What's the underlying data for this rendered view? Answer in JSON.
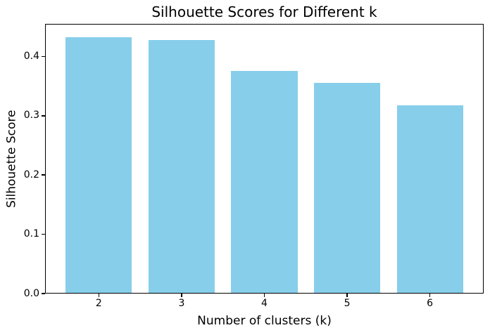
{
  "figure": {
    "background": "#ffffff",
    "text_color": "#000000"
  },
  "chart_data": {
    "type": "bar",
    "title": "Silhouette Scores for Different k",
    "xlabel": "Number of clusters (k)",
    "ylabel": "Silhouette Score",
    "categories": [
      2,
      3,
      4,
      5,
      6
    ],
    "values": [
      0.433,
      0.428,
      0.376,
      0.355,
      0.318
    ],
    "xtick_labels": [
      "2",
      "3",
      "4",
      "5",
      "6"
    ],
    "yticks": [
      0.0,
      0.1,
      0.2,
      0.3,
      0.4
    ],
    "ytick_labels": [
      "0.0",
      "0.1",
      "0.2",
      "0.3",
      "0.4"
    ],
    "xlim": [
      1.35,
      6.65
    ],
    "ylim": [
      0,
      0.455
    ],
    "bar_width": 0.8,
    "bar_color": "#87CEEB",
    "axis_color": "#000000",
    "grid": false,
    "legend": null
  }
}
